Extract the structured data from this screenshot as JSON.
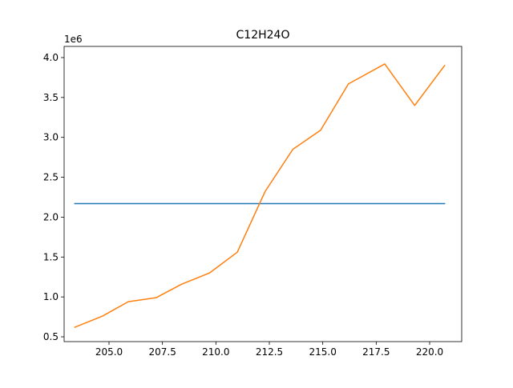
{
  "chart_data": {
    "type": "line",
    "title": "C12H24O",
    "xlabel": "",
    "ylabel": "",
    "y_offset_label": "1e6",
    "xlim": [
      202.9,
      221.5
    ],
    "ylim": [
      0.44,
      4.14
    ],
    "x_ticks": [
      205.0,
      207.5,
      210.0,
      212.5,
      215.0,
      217.5,
      220.0
    ],
    "x_tick_labels": [
      "205.0",
      "207.5",
      "210.0",
      "212.5",
      "215.0",
      "217.5",
      "220.0"
    ],
    "y_ticks": [
      0.5,
      1.0,
      1.5,
      2.0,
      2.5,
      3.0,
      3.5,
      4.0
    ],
    "y_tick_labels": [
      "0.5",
      "1.0",
      "1.5",
      "2.0",
      "2.5",
      "3.0",
      "3.5",
      "4.0"
    ],
    "grid": false,
    "series": [
      {
        "color": "#1f77b4",
        "x": [
          203.4,
          220.7
        ],
        "y": [
          2.17,
          2.17
        ]
      },
      {
        "color": "#ff7f0e",
        "x": [
          203.4,
          204.7,
          205.9,
          207.2,
          208.4,
          209.7,
          211.0,
          212.3,
          213.6,
          214.9,
          216.2,
          217.9,
          219.3,
          220.7
        ],
        "y": [
          0.62,
          0.76,
          0.94,
          0.99,
          1.16,
          1.3,
          1.56,
          2.32,
          2.85,
          3.09,
          3.67,
          3.92,
          3.4,
          3.9
        ]
      }
    ]
  }
}
